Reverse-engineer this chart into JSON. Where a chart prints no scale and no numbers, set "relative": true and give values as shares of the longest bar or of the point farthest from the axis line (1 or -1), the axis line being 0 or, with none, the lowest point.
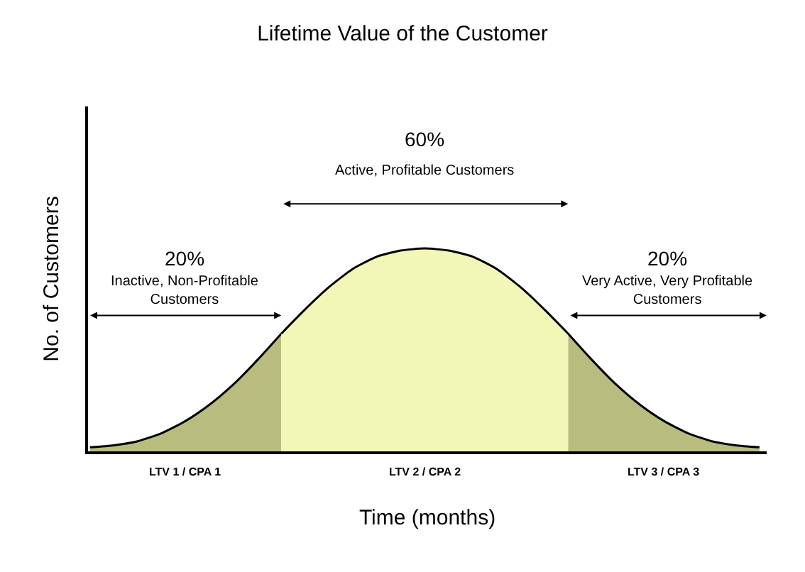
{
  "chart_data": {
    "type": "area",
    "title": "Lifetime Value of the Customer",
    "xlabel": "Time (months)",
    "ylabel": "No. of Customers",
    "relative": true,
    "categories": [
      null,
      null,
      null,
      null,
      null,
      null,
      null,
      null,
      null,
      null,
      null,
      null,
      null,
      null,
      null,
      null,
      null,
      null,
      null,
      null,
      null,
      null,
      null,
      null,
      null,
      null,
      null,
      null,
      null
    ],
    "series": [
      {
        "name": "LTV 1 / CPA 1",
        "color": "#b8bd7f",
        "values": [
          0.02,
          0.03,
          0.05,
          0.09,
          0.15,
          0.23,
          0.33,
          0.45,
          0.58,
          null,
          null,
          null,
          null,
          null,
          null,
          null,
          null,
          null,
          null,
          null,
          null,
          null,
          null,
          null,
          null,
          null,
          null,
          null,
          null
        ]
      },
      {
        "name": "LTV 2 / CPA 2",
        "color": "#f2f7b8",
        "values": [
          null,
          null,
          null,
          null,
          null,
          null,
          null,
          null,
          0.58,
          0.7,
          0.81,
          0.9,
          0.96,
          0.99,
          1,
          0.99,
          0.96,
          0.9,
          0.81,
          0.7,
          0.58,
          null,
          null,
          null,
          null,
          null,
          null,
          null,
          null
        ]
      },
      {
        "name": "LTV 3 / CPA 3",
        "color": "#b8bd7f",
        "values": [
          null,
          null,
          null,
          null,
          null,
          null,
          null,
          null,
          null,
          null,
          null,
          null,
          null,
          null,
          null,
          null,
          null,
          null,
          null,
          null,
          0.58,
          0.45,
          0.33,
          0.23,
          0.15,
          0.09,
          0.05,
          0.03,
          0.02
        ]
      }
    ],
    "annotations": [
      "60%",
      "Active, Profitable Customers",
      "20%",
      "Inactive, Non-Profitable\nCustomers",
      "20%",
      "Very Active, Very Profitable\nCustomers"
    ]
  }
}
